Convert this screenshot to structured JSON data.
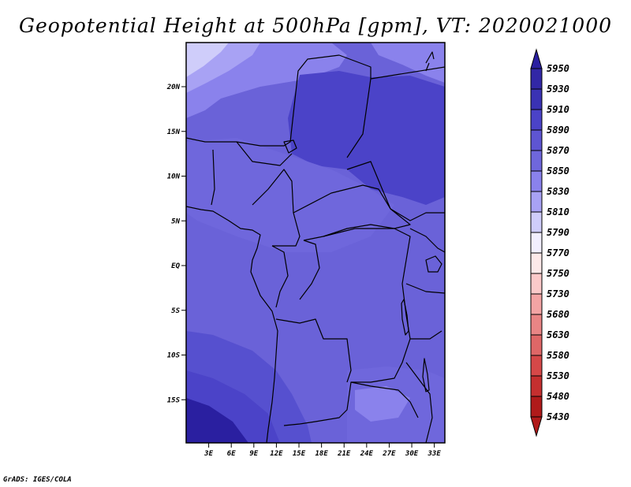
{
  "title": "Geopotential Height at 500hPa [gpm], VT: 2020021000",
  "credit": "GrADS: IGES/COLA",
  "axes": {
    "lat_labels": [
      {
        "value": 20,
        "label": "20N"
      },
      {
        "value": 15,
        "label": "15N"
      },
      {
        "value": 10,
        "label": "10N"
      },
      {
        "value": 5,
        "label": "5N"
      },
      {
        "value": 0,
        "label": "EQ"
      },
      {
        "value": -5,
        "label": "5S"
      },
      {
        "value": -10,
        "label": "10S"
      },
      {
        "value": -15,
        "label": "15S"
      }
    ],
    "lon_labels": [
      {
        "value": 3,
        "label": "3E"
      },
      {
        "value": 6,
        "label": "6E"
      },
      {
        "value": 9,
        "label": "9E"
      },
      {
        "value": 12,
        "label": "12E"
      },
      {
        "value": 15,
        "label": "15E"
      },
      {
        "value": 18,
        "label": "18E"
      },
      {
        "value": 21,
        "label": "21E"
      },
      {
        "value": 24,
        "label": "24E"
      },
      {
        "value": 27,
        "label": "27E"
      },
      {
        "value": 30,
        "label": "30E"
      },
      {
        "value": 33,
        "label": "33E"
      }
    ]
  },
  "colorbar": {
    "top_color": "#2a1fa0",
    "bottom_color": "#b01a1a",
    "levels": [
      {
        "label": "5950",
        "color": "#2a1fa0"
      },
      {
        "label": "5930",
        "color": "#3227a6"
      },
      {
        "label": "5910",
        "color": "#3a32b4"
      },
      {
        "label": "5890",
        "color": "#4b43c8"
      },
      {
        "label": "5870",
        "color": "#5e55d2"
      },
      {
        "label": "5850",
        "color": "#6f67dc"
      },
      {
        "label": "5830",
        "color": "#8a82ec"
      },
      {
        "label": "5810",
        "color": "#a8a2f4"
      },
      {
        "label": "5790",
        "color": "#cfcdfa"
      },
      {
        "label": "5770",
        "color": "#f2efff"
      },
      {
        "label": "5750",
        "color": "#fde9e9"
      },
      {
        "label": "5730",
        "color": "#fbc9c9"
      },
      {
        "label": "5680",
        "color": "#f3a4a4"
      },
      {
        "label": "5630",
        "color": "#e98585"
      },
      {
        "label": "5580",
        "color": "#df6767"
      },
      {
        "label": "5530",
        "color": "#d64848"
      },
      {
        "label": "5480",
        "color": "#c52f2f"
      },
      {
        "label": "5430",
        "color": "#b01a1a"
      }
    ]
  },
  "field_colors": {
    "lightest": "#cfcdfa",
    "light": "#a8a2f4",
    "mid_light": "#8a82ec",
    "mid": "#6f67dc",
    "base": "#6a62d8",
    "deep": "#5650cf",
    "deeper": "#4b43c8",
    "deepest": "#3a32b4",
    "darkest": "#2a1fa0"
  }
}
